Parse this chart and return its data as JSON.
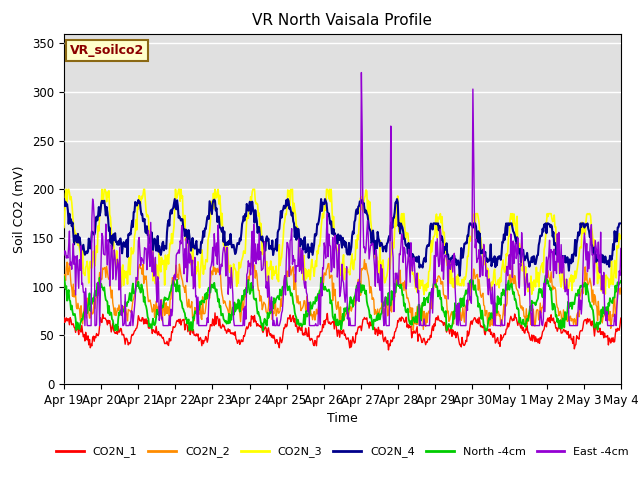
{
  "title": "VR North Vaisala Profile",
  "xlabel": "Time",
  "ylabel": "Soil CO2 (mV)",
  "subtitle_box": "VR_soilco2",
  "ylim": [
    0,
    360
  ],
  "yticks": [
    0,
    50,
    100,
    150,
    200,
    250,
    300,
    350
  ],
  "x_labels": [
    "Apr 19",
    "Apr 20",
    "Apr 21",
    "Apr 22",
    "Apr 23",
    "Apr 24",
    "Apr 25",
    "Apr 26",
    "Apr 27",
    "Apr 28",
    "Apr 29",
    "Apr 30",
    "May 1",
    "May 2",
    "May 3",
    "May 4"
  ],
  "colors": {
    "CO2N_1": "#ff0000",
    "CO2N_2": "#ff8c00",
    "CO2N_3": "#ffff00",
    "CO2N_4": "#00008b",
    "North_4cm": "#00cc00",
    "East_4cm": "#9400d3"
  },
  "bg_bands": [
    {
      "ymin": 200,
      "ymax": 360,
      "color": "#e0e0e0"
    },
    {
      "ymin": 100,
      "ymax": 200,
      "color": "#ebebeb"
    },
    {
      "ymin": 0,
      "ymax": 100,
      "color": "#f5f5f5"
    }
  ],
  "grid_color": "#ffffff",
  "legend_labels": [
    "CO2N_1",
    "CO2N_2",
    "CO2N_3",
    "CO2N_4",
    "North -4cm",
    "East -4cm"
  ]
}
